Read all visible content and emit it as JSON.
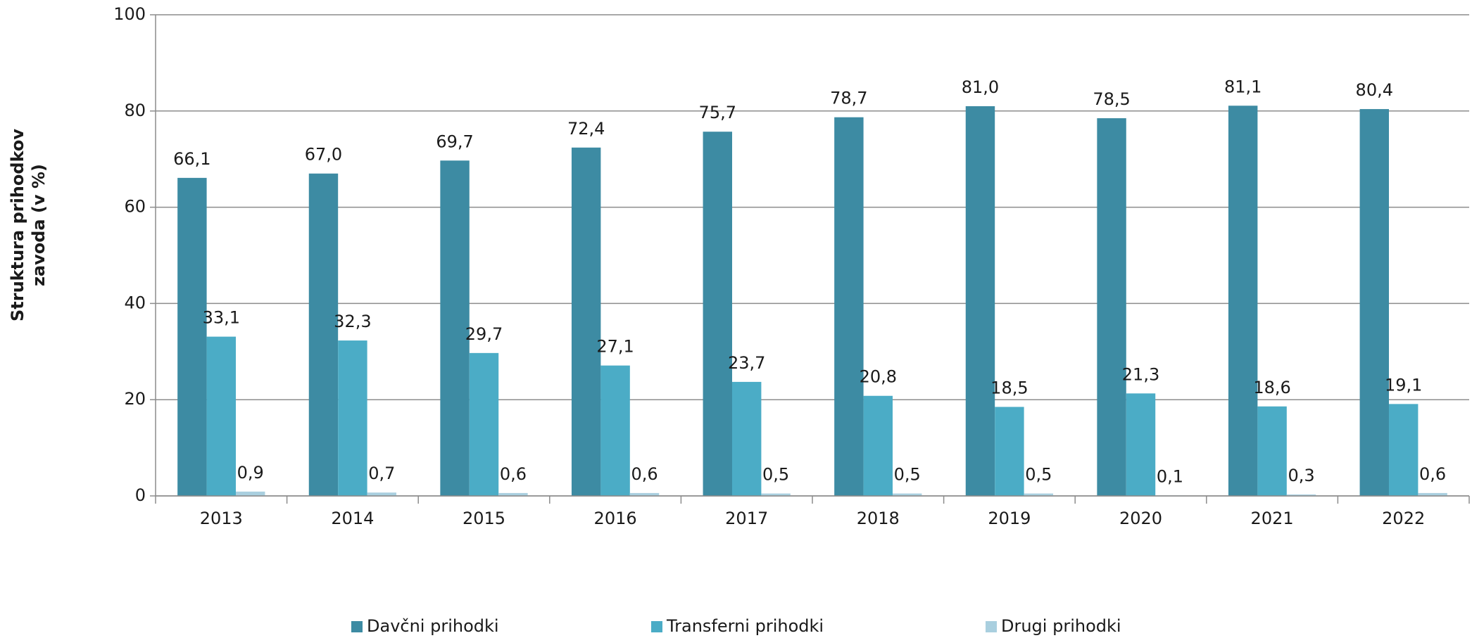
{
  "chart_data": {
    "type": "bar",
    "y_label": [
      "Struktura prihodkov",
      "zavoda (v %)"
    ],
    "categories": [
      "2013",
      "2014",
      "2015",
      "2016",
      "2017",
      "2018",
      "2019",
      "2020",
      "2021",
      "2022"
    ],
    "series": [
      {
        "name": "Davčni prihodki",
        "color": "#3d8ba3",
        "values": [
          66.1,
          67.0,
          69.7,
          72.4,
          75.7,
          78.7,
          81.0,
          78.5,
          81.1,
          80.4
        ],
        "value_labels": [
          "66,1",
          "67,0",
          "69,7",
          "72,4",
          "75,7",
          "78,7",
          "81,0",
          "78,5",
          "81,1",
          "80,4"
        ]
      },
      {
        "name": "Transferni prihodki",
        "color": "#4bacc6",
        "values": [
          33.1,
          32.3,
          29.7,
          27.1,
          23.7,
          20.8,
          18.5,
          21.3,
          18.6,
          19.1
        ],
        "value_labels": [
          "33,1",
          "32,3",
          "29,7",
          "27,1",
          "23,7",
          "20,8",
          "18,5",
          "21,3",
          "18,6",
          "19,1"
        ]
      },
      {
        "name": "Drugi prihodki",
        "color": "#a9cfdf",
        "values": [
          0.9,
          0.7,
          0.6,
          0.6,
          0.5,
          0.5,
          0.5,
          0.1,
          0.3,
          0.6
        ],
        "value_labels": [
          "0,9",
          "0,7",
          "0,6",
          "0,6",
          "0,5",
          "0,5",
          "0,5",
          "0,1",
          "0,3",
          "0,6"
        ]
      }
    ],
    "ylim": [
      0,
      100
    ],
    "yticks": [
      0,
      20,
      40,
      60,
      80,
      100
    ],
    "grid": true,
    "legend": "bottom"
  }
}
